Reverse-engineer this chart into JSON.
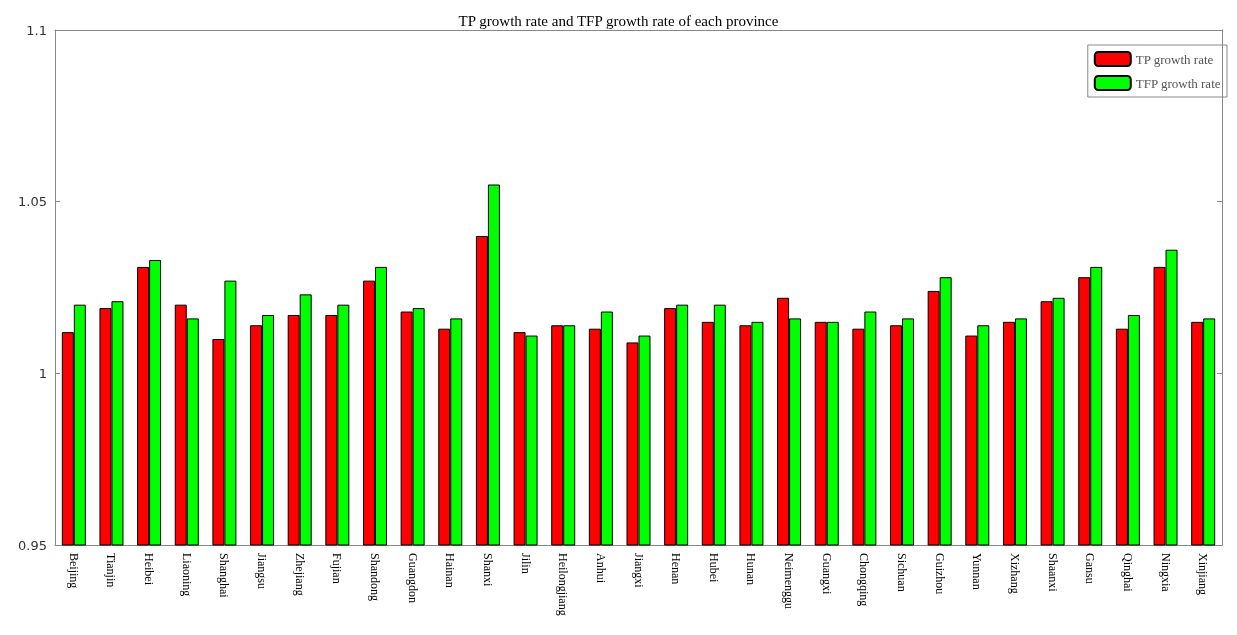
{
  "chart_data": {
    "type": "bar",
    "title": "TP growth rate and TFP growth rate of each province",
    "categories": [
      "Beijing",
      "Tianjin",
      "Heibei",
      "Liaoning",
      "Shanghai",
      "Jiangsu",
      "Zhejiang",
      "Fujian",
      "Shandong",
      "Guangdon",
      "Hainan",
      "Shanxi",
      "Jilin",
      "Heilongjiang",
      "Anhui",
      "Jiangxi",
      "Henan",
      "Hubei",
      "Hunan",
      "Neimenggu",
      "Guangxi",
      "Chongqing",
      "Sichuan",
      "Guizhou",
      "Yunnan",
      "Xizhang",
      "Shaanxi",
      "Gansu",
      "Qinghai",
      "Ningxia",
      "Xinjiang"
    ],
    "series": [
      {
        "name": "TP growth rate",
        "color": "#ff0000",
        "values": [
          1.012,
          1.019,
          1.031,
          1.02,
          1.01,
          1.014,
          1.017,
          1.017,
          1.027,
          1.018,
          1.013,
          1.04,
          1.012,
          1.014,
          1.013,
          1.009,
          1.019,
          1.015,
          1.014,
          1.022,
          1.015,
          1.013,
          1.014,
          1.024,
          1.011,
          1.015,
          1.021,
          1.028,
          1.013,
          1.031,
          1.015
        ]
      },
      {
        "name": "TFP growth rate",
        "color": "#00ff00",
        "values": [
          1.02,
          1.021,
          1.033,
          1.016,
          1.027,
          1.017,
          1.023,
          1.02,
          1.031,
          1.019,
          1.016,
          1.055,
          1.011,
          1.014,
          1.018,
          1.011,
          1.02,
          1.02,
          1.015,
          1.016,
          1.015,
          1.018,
          1.016,
          1.028,
          1.014,
          1.016,
          1.022,
          1.031,
          1.017,
          1.036,
          1.016
        ]
      }
    ],
    "ylim": [
      0.95,
      1.1
    ],
    "yticks": [
      0.95,
      1,
      1.05,
      1.1
    ],
    "grid": false,
    "legend": "top right"
  }
}
